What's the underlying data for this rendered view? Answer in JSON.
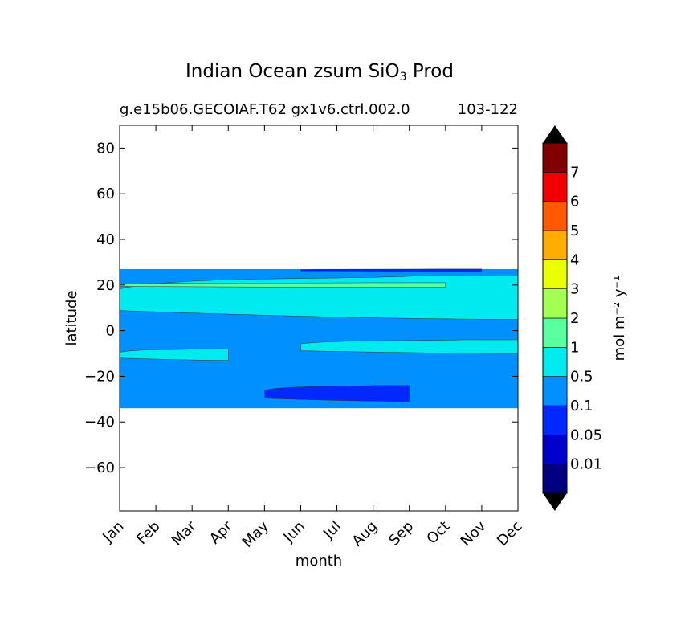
{
  "chart_data": {
    "type": "heatmap",
    "title": {
      "prefix": "Indian Ocean zsum SiO",
      "sub": "3",
      "suffix": " Prod"
    },
    "subtitle_left": "g.e15b06.GECOIAF.T62 gx1v6.ctrl.002.0",
    "subtitle_right": "103-122",
    "xlabel": "month",
    "ylabel": "latitude",
    "x_categories": [
      "Jan",
      "Feb",
      "Mar",
      "Apr",
      "May",
      "Jun",
      "Jul",
      "Aug",
      "Sep",
      "Oct",
      "Nov",
      "Dec"
    ],
    "ylim": [
      -79,
      90
    ],
    "yticks": [
      80,
      60,
      40,
      20,
      0,
      -20,
      -40,
      -60
    ],
    "data_lat_range": [
      -34,
      27
    ],
    "colorbar": {
      "label": "mol m⁻² y⁻¹",
      "levels": [
        "0.01",
        "0.05",
        "0.1",
        "0.5",
        "1",
        "2",
        "3",
        "4",
        "5",
        "6",
        "7"
      ],
      "colors": [
        "#000080",
        "#0000cd",
        "#0028ff",
        "#0090ff",
        "#00eaf0",
        "#5affa0",
        "#a3ff52",
        "#eaff00",
        "#ffae00",
        "#ff5a00",
        "#f00000",
        "#800000"
      ],
      "extend": "both"
    },
    "regions": [
      {
        "value_band": "0.1-0.5",
        "description": "background"
      },
      {
        "value_band": "0.5-1",
        "months": [
          "Jan",
          "Apr"
        ],
        "lat": [
          -13,
          -8
        ]
      },
      {
        "value_band": "0.5-1",
        "months": [
          "Jun",
          "Dec"
        ],
        "lat": [
          -10,
          -4
        ]
      },
      {
        "value_band": "0.5-1",
        "months": [
          "Jan",
          "Dec"
        ],
        "lat": [
          5,
          24
        ]
      },
      {
        "value_band": "1-2",
        "months": [
          "Jan",
          "Oct"
        ],
        "lat": [
          19,
          21
        ]
      },
      {
        "value_band": "0.05-0.1",
        "months": [
          "May",
          "Sep"
        ],
        "lat": [
          -31,
          -24
        ]
      },
      {
        "value_band": "0.05-0.1",
        "months": [
          "Jun",
          "Nov"
        ],
        "lat": [
          26,
          27
        ]
      }
    ]
  }
}
